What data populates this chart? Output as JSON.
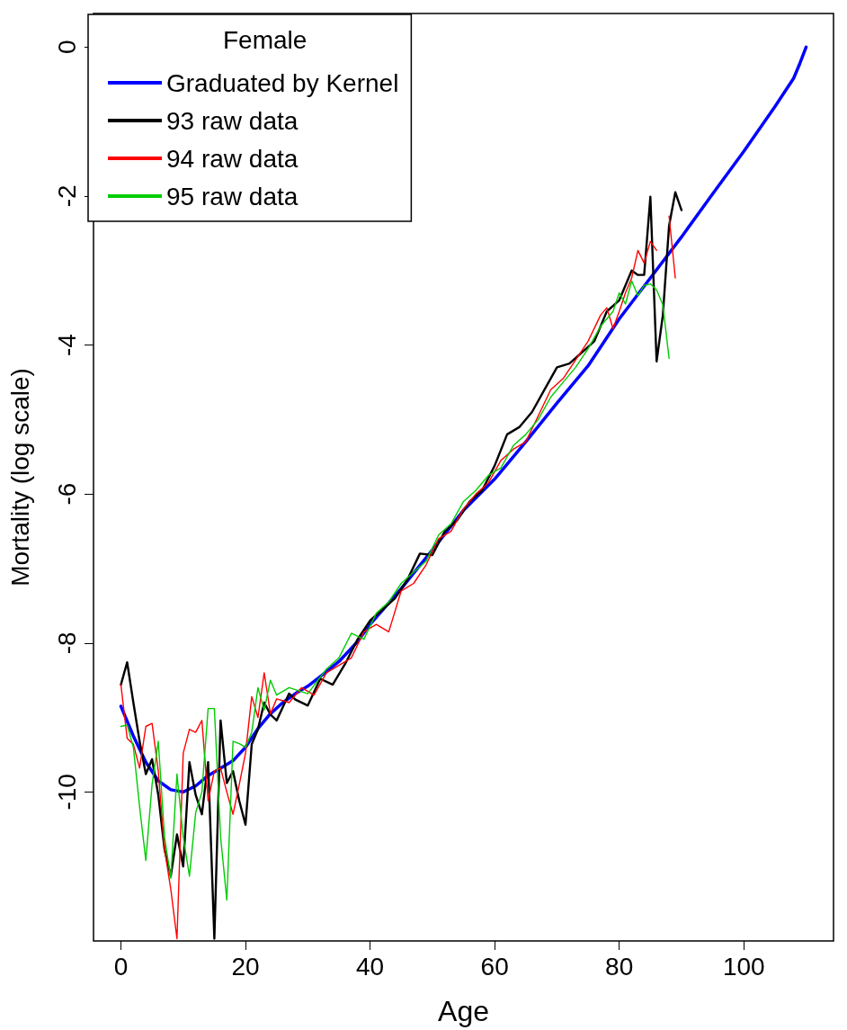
{
  "chart_data": {
    "type": "line",
    "xlabel": "Age",
    "ylabel": "Mortality (log scale)",
    "legend_title": "Female",
    "xlim": [
      -4.4,
      114.4
    ],
    "ylim": [
      -12,
      0.45
    ],
    "xticks": [
      0,
      20,
      40,
      60,
      80,
      100
    ],
    "yticks": [
      -10,
      -8,
      -6,
      -4,
      -2,
      0
    ],
    "grid": false,
    "legend": "top left",
    "marker": "none",
    "line_style": "solid",
    "series": [
      {
        "name": "Graduated by Kernel",
        "color": "#0000ff",
        "x": [
          0,
          2,
          4,
          6,
          8,
          10,
          12,
          14,
          16,
          18,
          20,
          22,
          24,
          26,
          28,
          30,
          32,
          35,
          38,
          40,
          45,
          50,
          55,
          60,
          65,
          70,
          75,
          80,
          85,
          90,
          95,
          100,
          105,
          108,
          109,
          110
        ],
        "values": [
          -8.85,
          -9.25,
          -9.6,
          -9.85,
          -9.97,
          -10.0,
          -9.92,
          -9.78,
          -9.68,
          -9.58,
          -9.4,
          -9.15,
          -8.95,
          -8.8,
          -8.68,
          -8.58,
          -8.45,
          -8.25,
          -7.98,
          -7.75,
          -7.27,
          -6.75,
          -6.22,
          -5.8,
          -5.3,
          -4.78,
          -4.28,
          -3.65,
          -3.1,
          -2.55,
          -1.97,
          -1.4,
          -0.8,
          -0.42,
          -0.22,
          0
        ]
      },
      {
        "name": "93 raw data",
        "color": "#000000",
        "x": [
          0,
          1,
          2,
          3,
          4,
          5,
          6,
          7,
          8,
          9,
          10,
          11,
          12,
          13,
          14,
          15,
          16,
          17,
          18,
          19,
          20,
          21,
          22,
          23,
          24,
          25,
          27,
          28,
          30,
          32,
          34,
          36,
          38,
          40,
          42,
          44,
          46,
          48,
          50,
          52,
          54,
          56,
          58,
          60,
          62,
          64,
          66,
          68,
          70,
          72,
          74,
          76,
          78,
          80,
          82,
          83,
          84,
          85,
          86,
          87,
          88,
          89,
          90
        ],
        "values": [
          -8.56,
          -8.26,
          -8.8,
          -9.32,
          -9.76,
          -9.56,
          -10.04,
          -10.77,
          -11.13,
          -10.57,
          -11.0,
          -9.6,
          -10.04,
          -10.3,
          -9.6,
          -11.97,
          -9.04,
          -9.88,
          -9.72,
          -10.12,
          -10.44,
          -9.36,
          -9.16,
          -8.8,
          -8.96,
          -9.04,
          -8.68,
          -8.76,
          -8.84,
          -8.48,
          -8.56,
          -8.28,
          -7.95,
          -7.7,
          -7.55,
          -7.4,
          -7.15,
          -6.8,
          -6.82,
          -6.5,
          -6.35,
          -6.1,
          -5.95,
          -5.62,
          -5.2,
          -5.1,
          -4.9,
          -4.6,
          -4.3,
          -4.25,
          -4.1,
          -3.95,
          -3.55,
          -3.4,
          -3.0,
          -3.06,
          -3.06,
          -2.01,
          -4.22,
          -3.6,
          -2.4,
          -1.95,
          -2.19
        ]
      },
      {
        "name": "94 raw data",
        "color": "#ff0000",
        "x": [
          0,
          1,
          2,
          3,
          4,
          5,
          6,
          7,
          8,
          9,
          10,
          11,
          12,
          13,
          14,
          15,
          16,
          17,
          18,
          19,
          20,
          21,
          22,
          23,
          24,
          25,
          27,
          29,
          31,
          33,
          35,
          37,
          39,
          41,
          43,
          45,
          47,
          49,
          51,
          53,
          55,
          57,
          59,
          61,
          63,
          65,
          67,
          69,
          71,
          73,
          75,
          77,
          78,
          79,
          80,
          81,
          82,
          83,
          84,
          85,
          86,
          87,
          88,
          89
        ],
        "values": [
          -8.56,
          -9.28,
          -9.36,
          -9.68,
          -9.12,
          -9.08,
          -9.72,
          -10.77,
          -11.3,
          -11.97,
          -9.48,
          -9.16,
          -9.2,
          -9.04,
          -10.12,
          -9.72,
          -9.68,
          -10.0,
          -10.3,
          -9.9,
          -9.48,
          -8.72,
          -9.0,
          -8.4,
          -8.95,
          -8.75,
          -8.8,
          -8.6,
          -8.7,
          -8.4,
          -8.3,
          -8.2,
          -7.85,
          -7.75,
          -7.85,
          -7.3,
          -7.2,
          -6.95,
          -6.6,
          -6.5,
          -6.2,
          -6.0,
          -5.85,
          -5.55,
          -5.4,
          -5.3,
          -4.95,
          -4.6,
          -4.45,
          -4.2,
          -3.95,
          -3.6,
          -3.5,
          -3.78,
          -3.55,
          -3.3,
          -3.1,
          -2.73,
          -2.9,
          -2.61,
          -2.73,
          null,
          -2.27,
          -3.1
        ]
      },
      {
        "name": "95 raw data",
        "color": "#00cc00",
        "x": [
          0,
          1,
          2,
          3,
          4,
          5,
          6,
          7,
          8,
          9,
          10,
          11,
          12,
          13,
          14,
          15,
          16,
          17,
          18,
          19,
          20,
          21,
          22,
          23,
          24,
          25,
          27,
          30,
          33,
          35,
          37,
          39,
          41,
          43,
          45,
          47,
          49,
          51,
          53,
          55,
          57,
          59,
          61,
          63,
          65,
          67,
          69,
          71,
          73,
          75,
          77,
          79,
          80,
          81,
          82,
          83,
          84,
          85,
          86,
          87,
          88
        ],
        "values": [
          -9.12,
          -9.1,
          -9.4,
          -10.2,
          -10.92,
          -9.9,
          -9.32,
          -10.6,
          -11.16,
          -9.76,
          -10.6,
          -11.13,
          -10.28,
          -10.0,
          -8.88,
          -8.88,
          -10.6,
          -11.45,
          -9.32,
          -9.35,
          -9.4,
          -9.2,
          -8.6,
          -8.9,
          -8.5,
          -8.7,
          -8.6,
          -8.68,
          -8.35,
          -8.2,
          -7.87,
          -7.95,
          -7.6,
          -7.45,
          -7.2,
          -7.05,
          -6.9,
          -6.55,
          -6.4,
          -6.1,
          -5.95,
          -5.75,
          -5.65,
          -5.35,
          -5.2,
          -5.0,
          -4.7,
          -4.5,
          -4.3,
          -4.05,
          -3.75,
          -3.55,
          -3.3,
          -3.45,
          -3.14,
          -3.34,
          -3.2,
          -3.18,
          -3.26,
          -3.46,
          -4.18
        ]
      }
    ]
  }
}
